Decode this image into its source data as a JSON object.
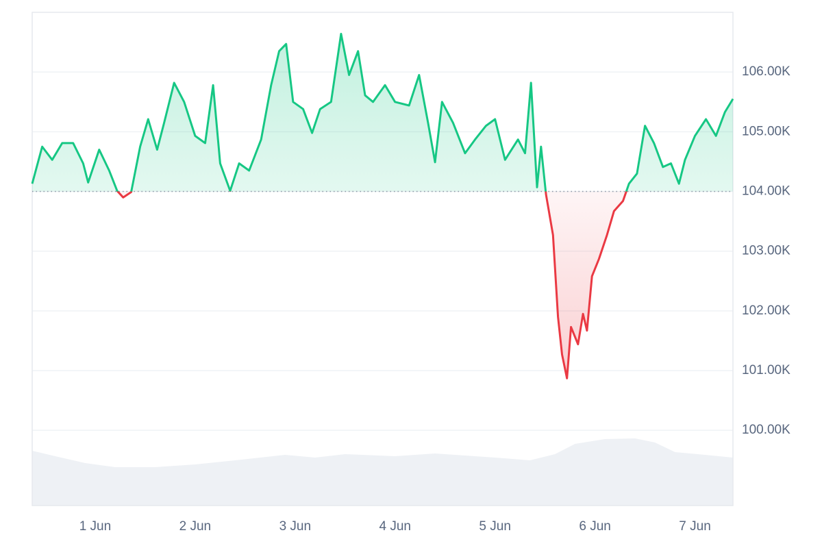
{
  "chart_data": {
    "type": "line",
    "x": [
      0.37,
      0.47,
      0.57,
      0.67,
      0.78,
      0.88,
      0.93,
      1.04,
      1.14,
      1.22,
      1.28,
      1.36,
      1.45,
      1.53,
      1.62,
      1.69,
      1.79,
      1.89,
      2.0,
      2.1,
      2.18,
      2.25,
      2.35,
      2.44,
      2.54,
      2.66,
      2.76,
      2.84,
      2.91,
      2.98,
      3.08,
      3.17,
      3.25,
      3.36,
      3.46,
      3.54,
      3.63,
      3.7,
      3.78,
      3.9,
      4.0,
      4.14,
      4.24,
      4.33,
      4.4,
      4.47,
      4.58,
      4.7,
      4.8,
      4.91,
      5.0,
      5.1,
      5.23,
      5.3,
      5.36,
      5.42,
      5.46,
      5.51,
      5.58,
      5.63,
      5.67,
      5.72,
      5.76,
      5.83,
      5.88,
      5.92,
      5.97,
      6.04,
      6.12,
      6.19,
      6.28,
      6.34,
      6.42,
      6.5,
      6.59,
      6.68,
      6.76,
      6.84,
      6.9,
      7.0,
      7.11,
      7.21,
      7.3,
      7.38
    ],
    "values": [
      104130,
      104750,
      104530,
      104810,
      104810,
      104470,
      104150,
      104700,
      104350,
      104010,
      103900,
      103990,
      104750,
      105210,
      104700,
      105150,
      105820,
      105500,
      104930,
      104810,
      105780,
      104470,
      104010,
      104470,
      104350,
      104870,
      105780,
      106350,
      106470,
      105500,
      105380,
      104980,
      105380,
      105500,
      106640,
      105950,
      106350,
      105610,
      105500,
      105780,
      105500,
      105440,
      105950,
      105150,
      104490,
      105500,
      105150,
      104640,
      104870,
      105100,
      105210,
      104530,
      104870,
      104640,
      105820,
      104070,
      104750,
      103950,
      103270,
      101900,
      101270,
      100870,
      101730,
      101440,
      101950,
      101670,
      102580,
      102870,
      103270,
      103670,
      103840,
      104130,
      104300,
      105100,
      104810,
      104410,
      104470,
      104130,
      104530,
      104930,
      105210,
      104930,
      105330,
      105550
    ],
    "baseline": 104000,
    "up_color": "#16c784",
    "down_color": "#ea3943",
    "volume": {
      "x": [
        0.37,
        0.6,
        0.9,
        1.2,
        1.6,
        2.0,
        2.4,
        2.9,
        3.2,
        3.5,
        4.0,
        4.4,
        5.0,
        5.35,
        5.6,
        5.8,
        6.1,
        6.4,
        6.6,
        6.8,
        7.1,
        7.38
      ],
      "values": [
        80,
        72,
        62,
        56,
        56,
        60,
        66,
        74,
        70,
        75,
        72,
        76,
        70,
        66,
        75,
        90,
        97,
        98,
        92,
        78,
        74,
        70
      ],
      "vlim": [
        0,
        100
      ],
      "color": "#eef1f5"
    },
    "xlim": [
      0.37,
      7.38
    ],
    "xticks": [
      {
        "value": 1,
        "label": "1 Jun"
      },
      {
        "value": 2,
        "label": "2 Jun"
      },
      {
        "value": 3,
        "label": "3 Jun"
      },
      {
        "value": 4,
        "label": "4 Jun"
      },
      {
        "value": 5,
        "label": "5 Jun"
      },
      {
        "value": 6,
        "label": "6 Jun"
      },
      {
        "value": 7,
        "label": "7 Jun"
      }
    ],
    "ylim": [
      98740,
      107000
    ],
    "yticks": [
      {
        "value": 100000,
        "label": "100.00K"
      },
      {
        "value": 101000,
        "label": "101.00K"
      },
      {
        "value": 102000,
        "label": "102.00K"
      },
      {
        "value": 103000,
        "label": "103.00K"
      },
      {
        "value": 104000,
        "label": "104.00K"
      },
      {
        "value": 105000,
        "label": "105.00K"
      },
      {
        "value": 106000,
        "label": "106.00K"
      }
    ],
    "grid": true
  }
}
